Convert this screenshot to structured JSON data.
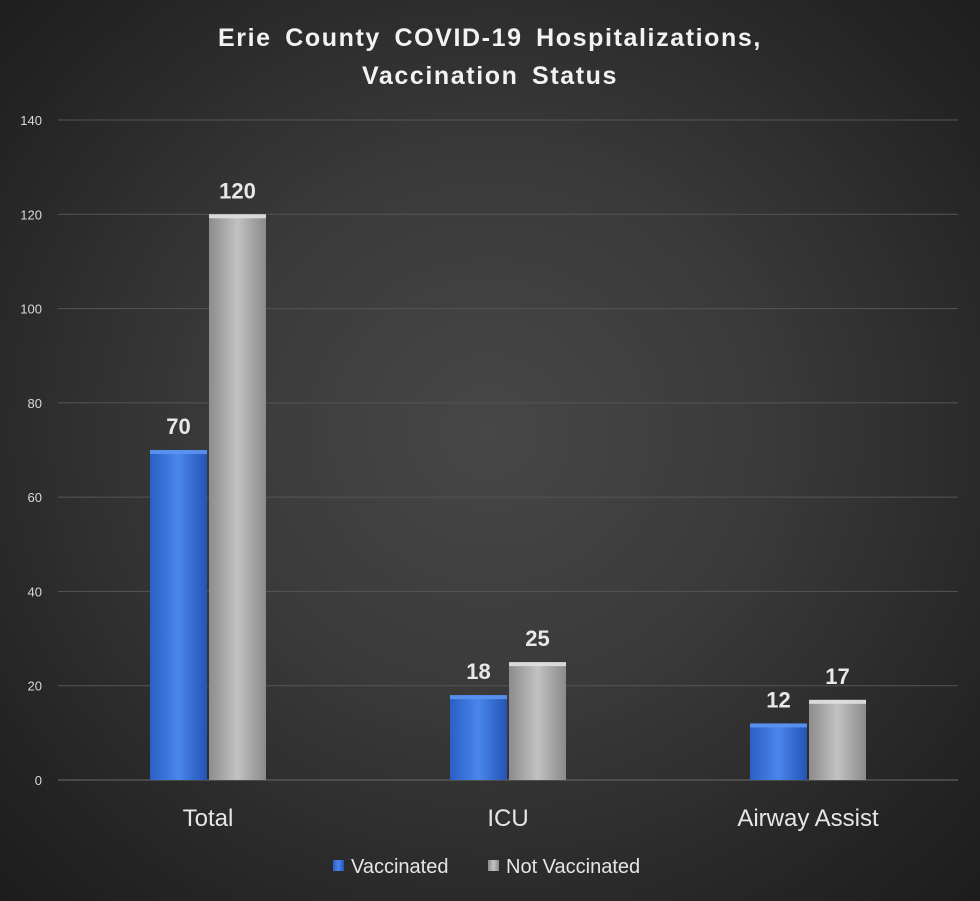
{
  "chart_data": {
    "type": "bar",
    "title_lines": [
      "Erie County COVID-19 Hospitalizations,",
      "Vaccination Status"
    ],
    "categories": [
      "Total",
      "ICU",
      "Airway Assist"
    ],
    "series": [
      {
        "name": "Vaccinated",
        "values": [
          70,
          18,
          12
        ],
        "color": "#3a72d8"
      },
      {
        "name": "Not Vaccinated",
        "values": [
          120,
          25,
          17
        ],
        "color": "#a6a6a6"
      }
    ],
    "ylim": [
      0,
      140
    ],
    "yticks": [
      0,
      20,
      40,
      60,
      80,
      100,
      120,
      140
    ],
    "grid": true,
    "legend_position": "bottom",
    "data_labels": true,
    "background": "#2e2e2e",
    "gridline_color": "#555555"
  }
}
